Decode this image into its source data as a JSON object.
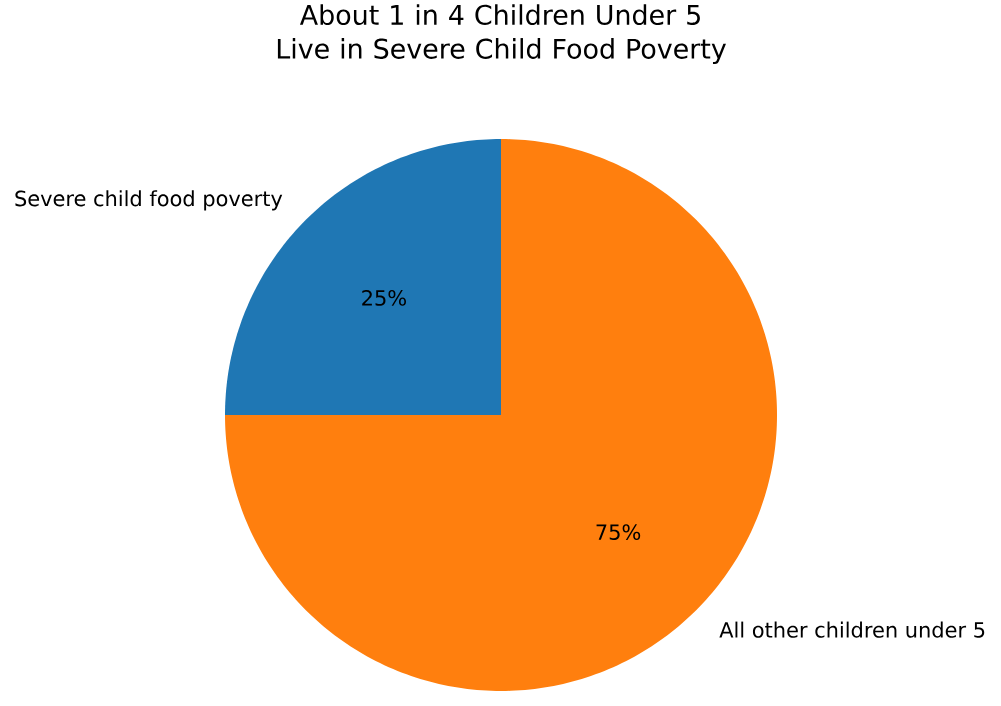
{
  "chart_data": {
    "type": "pie",
    "title": "About 1 in 4 Children Under 5\nLive in Severe Child Food Poverty",
    "categories": [
      "Severe child food poverty",
      "All other children under 5"
    ],
    "values": [
      25,
      75
    ],
    "colors": [
      "#1f77b4",
      "#ff7f0e"
    ],
    "value_labels": [
      "25%",
      "75%"
    ]
  }
}
